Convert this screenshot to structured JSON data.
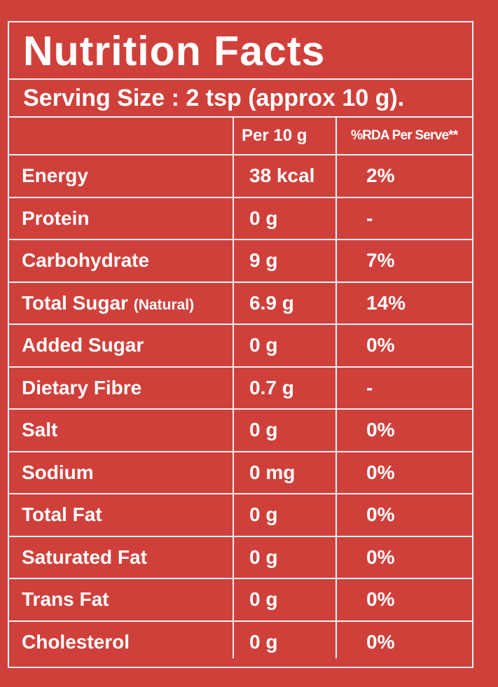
{
  "label": {
    "title": "Nutrition Facts",
    "serving_size": "Serving Size : 2 tsp (approx 10 g).",
    "columns": {
      "nutrient": "",
      "per": "Per 10 g",
      "rda": "%RDA Per Serve**"
    },
    "rows": [
      {
        "name": "Energy",
        "sub": "",
        "per": "38 kcal",
        "rda": "2%"
      },
      {
        "name": "Protein",
        "sub": "",
        "per": "0 g",
        "rda": "-"
      },
      {
        "name": "Carbohydrate",
        "sub": "",
        "per": "9 g",
        "rda": "7%"
      },
      {
        "name": "Total Sugar ",
        "sub": "(Natural)",
        "per": "6.9 g",
        "rda": "14%"
      },
      {
        "name": "Added Sugar",
        "sub": "",
        "per": "0 g",
        "rda": "0%"
      },
      {
        "name": "Dietary Fibre",
        "sub": "",
        "per": "0.7 g",
        "rda": "-"
      },
      {
        "name": "Salt",
        "sub": "",
        "per": "0 g",
        "rda": "0%"
      },
      {
        "name": "Sodium",
        "sub": "",
        "per": "0 mg",
        "rda": "0%"
      },
      {
        "name": "Total Fat",
        "sub": "",
        "per": "0 g",
        "rda": "0%"
      },
      {
        "name": "Saturated Fat",
        "sub": "",
        "per": "0 g",
        "rda": "0%"
      },
      {
        "name": "Trans Fat",
        "sub": "",
        "per": "0 g",
        "rda": "0%"
      },
      {
        "name": "Cholesterol",
        "sub": "",
        "per": "0 g",
        "rda": "0%"
      }
    ]
  },
  "colors": {
    "background": "#d0403b",
    "text": "#ffffff",
    "rules": "#f3f3f3"
  }
}
